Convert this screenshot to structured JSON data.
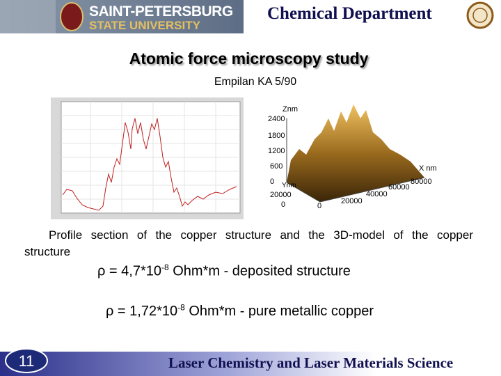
{
  "header": {
    "university_line1": "SAINT-PETERSBURG",
    "university_line2": "STATE UNIVERSITY",
    "department": "Chemical Department"
  },
  "title": "Atomic force microscopy study",
  "subtitle": "Empilan KA 5/90",
  "model_3d": {
    "z_label": "Znm",
    "z_ticks": [
      "2400",
      "1800",
      "1200",
      "600",
      "0"
    ],
    "y_label": "Ynm",
    "y_ticks": [
      "20000",
      "0"
    ],
    "x_label": "X nm",
    "x_ticks": [
      "0",
      "20000",
      "40000",
      "60000",
      "80000"
    ]
  },
  "caption": "Profile section of the copper structure and the 3D-model of the copper structure",
  "formulas": [
    {
      "base": "ρ = 4,7*10",
      "exponent": "-8",
      "rest": " Ohm*m -  deposited structure"
    },
    {
      "base": "ρ = 1,72*10",
      "exponent": "-8",
      "rest": " Ohm*m - pure metallic copper"
    }
  ],
  "footer": {
    "page_number": "11",
    "course": "Laser Chemistry and Laser Materials Science"
  }
}
